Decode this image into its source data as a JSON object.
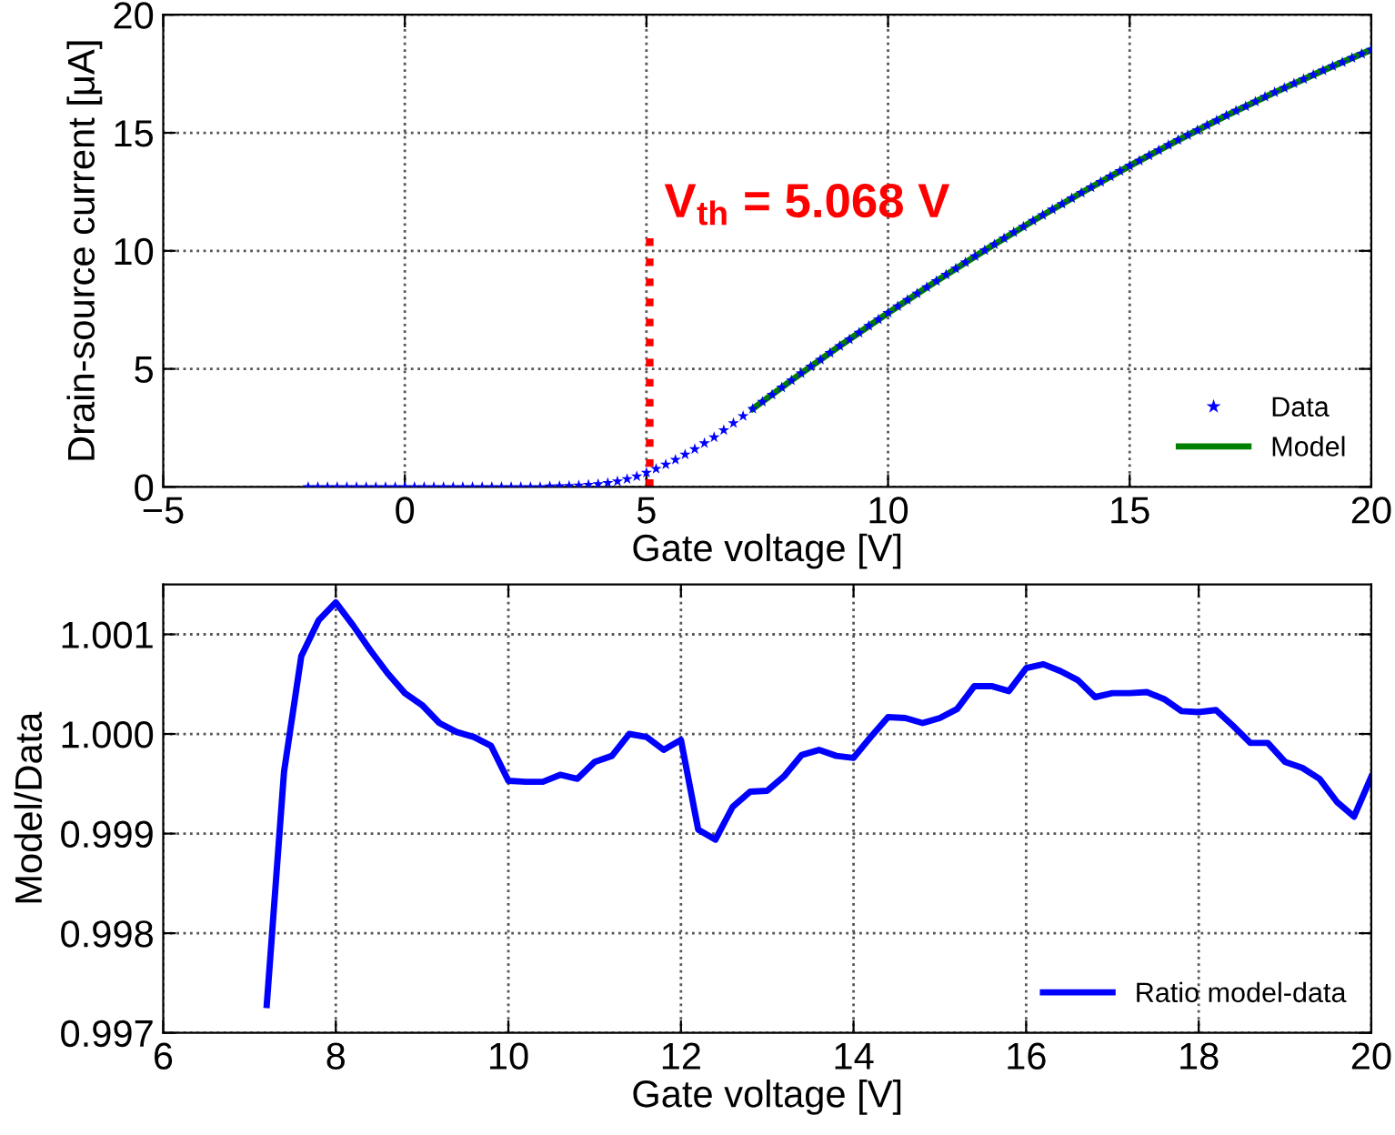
{
  "chart_data": [
    {
      "type": "line",
      "xlabel": "Gate voltage [V]",
      "ylabel": "Drain-source current [μA]",
      "xlim": [
        -5,
        20
      ],
      "xticks": [
        {
          "value": -5,
          "label": "−5"
        },
        0,
        5,
        10,
        15,
        20
      ],
      "ylim": [
        0,
        20
      ],
      "yticks": [
        0,
        5,
        10,
        15,
        20
      ],
      "grid": true,
      "legend": "bottom right",
      "series": [
        {
          "name": "Data",
          "type": "scatter",
          "marker": "star",
          "color": "#0000ff",
          "x": [
            -2.0,
            -1.8,
            -1.6,
            -1.4,
            -1.2,
            -1.0,
            -0.8,
            -0.6,
            -0.4,
            -0.2,
            0.0,
            0.2,
            0.4,
            0.6,
            0.8,
            1.0,
            1.2,
            1.4,
            1.6,
            1.8,
            2.0,
            2.2,
            2.4,
            2.6,
            2.8,
            3.0,
            3.2,
            3.4,
            3.6,
            3.8,
            4.0,
            4.2,
            4.4,
            4.6,
            4.8,
            5.0,
            5.2,
            5.4,
            5.6,
            5.8,
            6.0,
            6.2,
            6.4,
            6.6,
            6.8,
            7.0,
            7.2,
            7.4,
            7.6,
            7.8,
            8.0,
            8.2,
            8.4,
            8.6,
            8.8,
            9.0,
            9.2,
            9.4,
            9.6,
            9.8,
            10.0,
            10.2,
            10.4,
            10.6,
            10.8,
            11.0,
            11.2,
            11.4,
            11.6,
            11.8,
            12.0,
            12.2,
            12.4,
            12.6,
            12.8,
            13.0,
            13.2,
            13.4,
            13.6,
            13.8,
            14.0,
            14.2,
            14.4,
            14.6,
            14.8,
            15.0,
            15.2,
            15.4,
            15.6,
            15.8,
            16.0,
            16.2,
            16.4,
            16.6,
            16.8,
            17.0,
            17.2,
            17.4,
            17.6,
            17.8,
            18.0,
            18.2,
            18.4,
            18.6,
            18.8,
            19.0,
            19.2,
            19.4,
            19.6,
            19.8,
            20.0
          ],
          "values": [
            0,
            0,
            0,
            0,
            0,
            0,
            0,
            0,
            0,
            0,
            0,
            0,
            0,
            0,
            0,
            0,
            0,
            0,
            0,
            0,
            0,
            0,
            0,
            0,
            0,
            0.02,
            0.03,
            0.04,
            0.06,
            0.09,
            0.12,
            0.17,
            0.24,
            0.33,
            0.45,
            0.6,
            0.77,
            0.95,
            1.15,
            1.37,
            1.6,
            1.85,
            2.1,
            2.4,
            2.7,
            3.0,
            3.31,
            3.61,
            3.91,
            4.21,
            4.51,
            4.81,
            5.1,
            5.39,
            5.68,
            5.97,
            6.25,
            6.53,
            6.82,
            7.09,
            7.37,
            7.65,
            7.92,
            8.19,
            8.46,
            8.72,
            8.99,
            9.25,
            9.51,
            9.77,
            10.02,
            10.27,
            10.53,
            10.78,
            11.02,
            11.27,
            11.51,
            11.75,
            11.99,
            12.23,
            12.46,
            12.69,
            12.92,
            13.15,
            13.38,
            13.6,
            13.82,
            14.04,
            14.26,
            14.48,
            14.69,
            14.9,
            15.11,
            15.32,
            15.52,
            15.73,
            15.93,
            16.12,
            16.32,
            16.52,
            16.71,
            16.9,
            17.09,
            17.27,
            17.46,
            17.64,
            17.82,
            17.99,
            18.17,
            18.34,
            18.52
          ]
        },
        {
          "name": "Model",
          "type": "line",
          "color": "#008000",
          "x": [
            7.2,
            8,
            9,
            10,
            11,
            12,
            13,
            14,
            15,
            16,
            17,
            18,
            19,
            20
          ],
          "values": [
            3.31,
            4.51,
            5.97,
            7.37,
            8.72,
            10.02,
            11.27,
            12.46,
            13.6,
            14.69,
            15.73,
            16.71,
            17.64,
            18.52
          ]
        }
      ],
      "ref_lines": [
        {
          "axis": "x",
          "value": 5.068,
          "color": "#ff0000",
          "line_style": "dotted"
        }
      ],
      "annotations": [
        {
          "text": "V$_{th}$ = 5.068 V",
          "x": 5.068,
          "y": 11
        }
      ]
    },
    {
      "type": "line",
      "xlabel": "Gate voltage [V]",
      "ylabel": "Model/Data",
      "xlim": [
        6,
        20
      ],
      "xticks": [
        6,
        8,
        10,
        12,
        14,
        16,
        18,
        20
      ],
      "ylim": [
        0.997,
        1.0015
      ],
      "yticks": [
        0.997,
        0.998,
        0.999,
        {
          "value": 1.0,
          "label": "1.000"
        },
        1.001
      ],
      "grid": true,
      "legend": "bottom right",
      "series": [
        {
          "name": "Ratio model-data",
          "color": "#0000ff",
          "x": [
            7.2,
            7.4,
            7.6,
            7.8,
            8.0,
            8.2,
            8.4,
            8.6,
            8.8,
            9.0,
            9.2,
            9.4,
            9.6,
            9.8,
            10.0,
            10.2,
            10.4,
            10.6,
            10.8,
            11.0,
            11.2,
            11.4,
            11.6,
            11.8,
            12.0,
            12.2,
            12.4,
            12.6,
            12.8,
            13.0,
            13.2,
            13.4,
            13.6,
            13.8,
            14.0,
            14.2,
            14.4,
            14.6,
            14.8,
            15.0,
            15.2,
            15.4,
            15.6,
            15.8,
            16.0,
            16.2,
            16.4,
            16.6,
            16.8,
            17.0,
            17.2,
            17.4,
            17.6,
            17.8,
            18.0,
            18.2,
            18.4,
            18.6,
            18.8,
            19.0,
            19.2,
            19.4,
            19.6,
            19.8,
            20.0
          ],
          "values": [
            0.99728,
            0.99962,
            1.00078,
            1.00114,
            1.00132,
            1.00109,
            1.00084,
            1.00061,
            1.00041,
            1.00029,
            1.00011,
            1.00002,
            0.99997,
            0.99988,
            0.99953,
            0.99952,
            0.99952,
            0.99959,
            0.99955,
            0.99972,
            0.99978,
            1.0,
            0.99997,
            0.99984,
            0.99994,
            0.99904,
            0.99894,
            0.99927,
            0.99942,
            0.99943,
            0.99958,
            0.99979,
            0.99984,
            0.99978,
            0.99976,
            0.99997,
            1.00017,
            1.00016,
            1.00011,
            1.00016,
            1.00025,
            1.00048,
            1.00048,
            1.00043,
            1.00066,
            1.0007,
            1.00063,
            1.00054,
            1.00037,
            1.00041,
            1.00041,
            1.00042,
            1.00035,
            1.00023,
            1.00022,
            1.00024,
            1.00008,
            0.99991,
            0.99991,
            0.99972,
            0.99966,
            0.99955,
            0.99932,
            0.99917,
            0.99957
          ]
        }
      ]
    }
  ]
}
